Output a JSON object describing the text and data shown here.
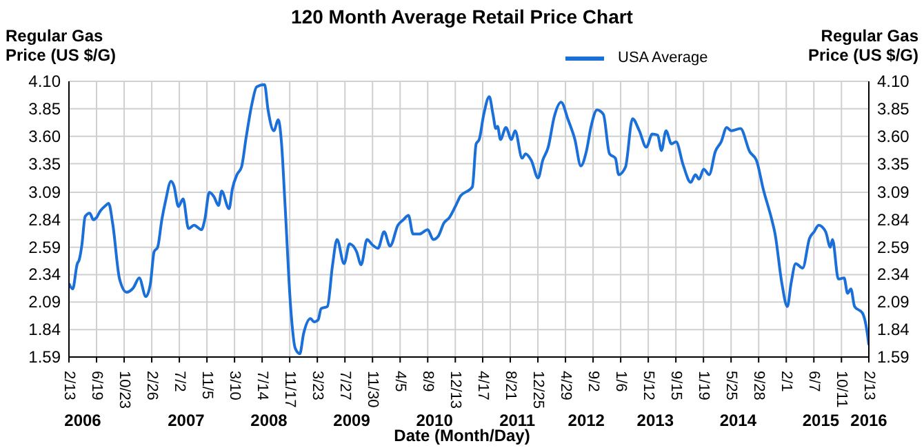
{
  "chart_data": {
    "type": "line",
    "title": "120 Month Average Retail Price Chart",
    "xlabel": "Date (Month/Day)",
    "ylabel": "Regular Gas Price (US $/G)",
    "y2label": "Regular Gas Price (US $/G)",
    "xlim": [
      "2006-02-13",
      "2016-02-13"
    ],
    "xticks": [
      {
        "value": "2006-02-13",
        "label": "2/13"
      },
      {
        "value": "2006-06-19",
        "label": "6/19"
      },
      {
        "value": "2006-10-23",
        "label": "10/23"
      },
      {
        "value": "2007-02-26",
        "label": "2/26"
      },
      {
        "value": "2007-07-02",
        "label": "7/2"
      },
      {
        "value": "2007-11-05",
        "label": "11/5"
      },
      {
        "value": "2008-03-10",
        "label": "3/10"
      },
      {
        "value": "2008-07-14",
        "label": "7/14"
      },
      {
        "value": "2008-11-17",
        "label": "11/17"
      },
      {
        "value": "2009-03-23",
        "label": "3/23"
      },
      {
        "value": "2009-07-27",
        "label": "7/27"
      },
      {
        "value": "2009-11-30",
        "label": "11/30"
      },
      {
        "value": "2010-04-05",
        "label": "4/5"
      },
      {
        "value": "2010-08-09",
        "label": "8/9"
      },
      {
        "value": "2010-12-13",
        "label": "12/13"
      },
      {
        "value": "2011-04-17",
        "label": "4/17"
      },
      {
        "value": "2011-08-21",
        "label": "8/21"
      },
      {
        "value": "2011-12-25",
        "label": "12/25"
      },
      {
        "value": "2012-04-29",
        "label": "4/29"
      },
      {
        "value": "2012-09-02",
        "label": "9/2"
      },
      {
        "value": "2013-01-06",
        "label": "1/6"
      },
      {
        "value": "2013-05-12",
        "label": "5/12"
      },
      {
        "value": "2013-09-15",
        "label": "9/15"
      },
      {
        "value": "2014-01-19",
        "label": "1/19"
      },
      {
        "value": "2014-05-25",
        "label": "5/25"
      },
      {
        "value": "2014-09-28",
        "label": "9/28"
      },
      {
        "value": "2015-02-01",
        "label": "2/1"
      },
      {
        "value": "2015-06-07",
        "label": "6/7"
      },
      {
        "value": "2015-10-11",
        "label": "10/11"
      },
      {
        "value": "2016-02-13",
        "label": "2/13"
      }
    ],
    "x2lim": [
      "2006-02-13",
      "2016-02-13"
    ],
    "x2ticks": [
      {
        "value": "2006-04-17",
        "label": "2006"
      },
      {
        "value": "2007-08-02",
        "label": "2007"
      },
      {
        "value": "2008-08-14",
        "label": "2008"
      },
      {
        "value": "2009-08-27",
        "label": "2009"
      },
      {
        "value": "2010-09-09",
        "label": "2010"
      },
      {
        "value": "2011-09-22",
        "label": "2011"
      },
      {
        "value": "2012-08-02",
        "label": "2012"
      },
      {
        "value": "2013-06-13",
        "label": "2013"
      },
      {
        "value": "2014-06-26",
        "label": "2014"
      },
      {
        "value": "2015-07-09",
        "label": "2015"
      },
      {
        "value": "2016-02-13",
        "label": "2016"
      }
    ],
    "ylim": [
      1.59,
      4.1
    ],
    "yticks": [
      1.59,
      1.84,
      2.09,
      2.34,
      2.59,
      2.84,
      3.09,
      3.35,
      {
        "value": 3.6,
        "label": "3.60"
      },
      3.85,
      {
        "value": 4.1,
        "label": "4.10"
      }
    ],
    "y2lim": [
      1.59,
      4.1
    ],
    "y2ticks": [
      1.59,
      1.84,
      2.09,
      2.34,
      2.59,
      2.84,
      3.09,
      3.35,
      {
        "value": 3.6,
        "label": "3.60"
      },
      3.85,
      {
        "value": 4.1,
        "label": "4.10"
      }
    ],
    "grid": true,
    "legend": "top",
    "marker": "none",
    "line_style": "solid",
    "x": [
      "2006-02-13",
      "2006-03-02",
      "2006-03-23",
      "2006-03-31",
      "2006-04-13",
      "2006-04-28",
      "2006-05-19",
      "2006-06-04",
      "2006-06-19",
      "2006-07-06",
      "2006-07-31",
      "2006-08-13",
      "2006-09-01",
      "2006-10-02",
      "2006-11-03",
      "2006-12-04",
      "2006-12-31",
      "2007-01-30",
      "2007-02-20",
      "2007-03-09",
      "2007-03-25",
      "2007-04-13",
      "2007-04-30",
      "2007-05-25",
      "2007-06-07",
      "2007-06-28",
      "2007-07-19",
      "2007-08-13",
      "2007-09-07",
      "2007-10-11",
      "2007-10-26",
      "2007-11-16",
      "2007-12-07",
      "2007-12-28",
      "2008-01-11",
      "2008-02-14",
      "2008-02-29",
      "2008-03-21",
      "2008-04-11",
      "2008-05-02",
      "2008-05-29",
      "2008-06-19",
      "2008-07-25",
      "2008-08-10",
      "2008-09-05",
      "2008-09-26",
      "2008-10-10",
      "2008-10-27",
      "2008-11-21",
      "2008-12-12",
      "2009-01-02",
      "2009-01-19",
      "2009-02-20",
      "2009-03-08",
      "2009-03-27",
      "2009-04-09",
      "2009-05-08",
      "2009-05-31",
      "2009-06-21",
      "2009-07-23",
      "2009-08-17",
      "2009-09-18",
      "2009-10-09",
      "2009-11-05",
      "2009-11-30",
      "2009-12-25",
      "2010-01-22",
      "2010-02-18",
      "2010-03-26",
      "2010-04-20",
      "2010-05-13",
      "2010-06-03",
      "2010-07-02",
      "2010-08-09",
      "2010-09-03",
      "2010-09-26",
      "2010-10-22",
      "2010-11-16",
      "2010-12-13",
      "2011-01-07",
      "2011-02-14",
      "2011-03-01",
      "2011-03-18",
      "2011-04-01",
      "2011-04-22",
      "2011-05-17",
      "2011-06-03",
      "2011-06-16",
      "2011-06-24",
      "2011-07-07",
      "2011-08-01",
      "2011-08-26",
      "2011-09-12",
      "2011-10-14",
      "2011-10-30",
      "2011-11-25",
      "2011-12-26",
      "2012-01-16",
      "2012-02-10",
      "2012-03-09",
      "2012-04-09",
      "2012-05-11",
      "2012-06-11",
      "2012-07-08",
      "2012-08-02",
      "2012-08-24",
      "2012-09-20",
      "2012-10-19",
      "2012-11-16",
      "2012-12-13",
      "2012-12-28",
      "2013-01-28",
      "2013-03-01",
      "2013-04-01",
      "2013-05-03",
      "2013-05-30",
      "2013-06-24",
      "2013-07-11",
      "2013-08-01",
      "2013-08-26",
      "2013-09-16",
      "2013-10-18",
      "2013-11-22",
      "2013-12-13",
      "2013-12-30",
      "2014-01-20",
      "2014-02-14",
      "2014-03-14",
      "2014-04-10",
      "2014-05-05",
      "2014-05-26",
      "2014-07-07",
      "2014-08-18",
      "2014-09-18",
      "2014-10-20",
      "2014-11-27",
      "2014-12-12",
      "2015-01-12",
      "2015-02-06",
      "2015-02-23",
      "2015-03-16",
      "2015-04-17",
      "2015-05-18",
      "2015-06-08",
      "2015-06-29",
      "2015-07-31",
      "2015-08-21",
      "2015-08-31",
      "2015-09-27",
      "2015-10-23",
      "2015-11-08",
      "2015-11-23",
      "2015-12-10",
      "2016-01-15",
      "2016-02-05",
      "2016-02-13"
    ],
    "series": [
      {
        "name": "USA Average",
        "color": "#1a6fd8",
        "values": [
          2.26,
          2.21,
          2.44,
          2.47,
          2.61,
          2.87,
          2.9,
          2.84,
          2.86,
          2.92,
          2.97,
          2.99,
          2.8,
          2.3,
          2.18,
          2.22,
          2.31,
          2.14,
          2.26,
          2.55,
          2.59,
          2.84,
          3.01,
          3.19,
          3.15,
          2.96,
          3.03,
          2.76,
          2.79,
          2.75,
          2.84,
          3.09,
          3.05,
          2.97,
          3.1,
          2.94,
          3.12,
          3.25,
          3.32,
          3.59,
          3.9,
          4.05,
          4.07,
          3.84,
          3.65,
          3.75,
          3.55,
          2.96,
          2.05,
          1.67,
          1.62,
          1.8,
          1.94,
          1.91,
          1.93,
          2.03,
          2.05,
          2.42,
          2.66,
          2.44,
          2.62,
          2.55,
          2.43,
          2.66,
          2.61,
          2.58,
          2.73,
          2.6,
          2.79,
          2.84,
          2.88,
          2.71,
          2.71,
          2.75,
          2.66,
          2.69,
          2.81,
          2.86,
          2.96,
          3.06,
          3.11,
          3.14,
          3.53,
          3.57,
          3.8,
          3.96,
          3.8,
          3.67,
          3.69,
          3.57,
          3.68,
          3.57,
          3.65,
          3.4,
          3.44,
          3.38,
          3.22,
          3.38,
          3.5,
          3.78,
          3.91,
          3.75,
          3.57,
          3.33,
          3.46,
          3.69,
          3.84,
          3.8,
          3.44,
          3.4,
          3.25,
          3.32,
          3.76,
          3.65,
          3.5,
          3.62,
          3.61,
          3.47,
          3.65,
          3.53,
          3.55,
          3.34,
          3.18,
          3.25,
          3.21,
          3.3,
          3.25,
          3.46,
          3.55,
          3.68,
          3.65,
          3.67,
          3.46,
          3.38,
          3.11,
          2.84,
          2.71,
          2.26,
          2.05,
          2.26,
          2.44,
          2.4,
          2.67,
          2.73,
          2.79,
          2.73,
          2.59,
          2.66,
          2.3,
          2.31,
          2.17,
          2.21,
          2.05,
          1.99,
          1.82,
          1.7
        ]
      }
    ]
  }
}
